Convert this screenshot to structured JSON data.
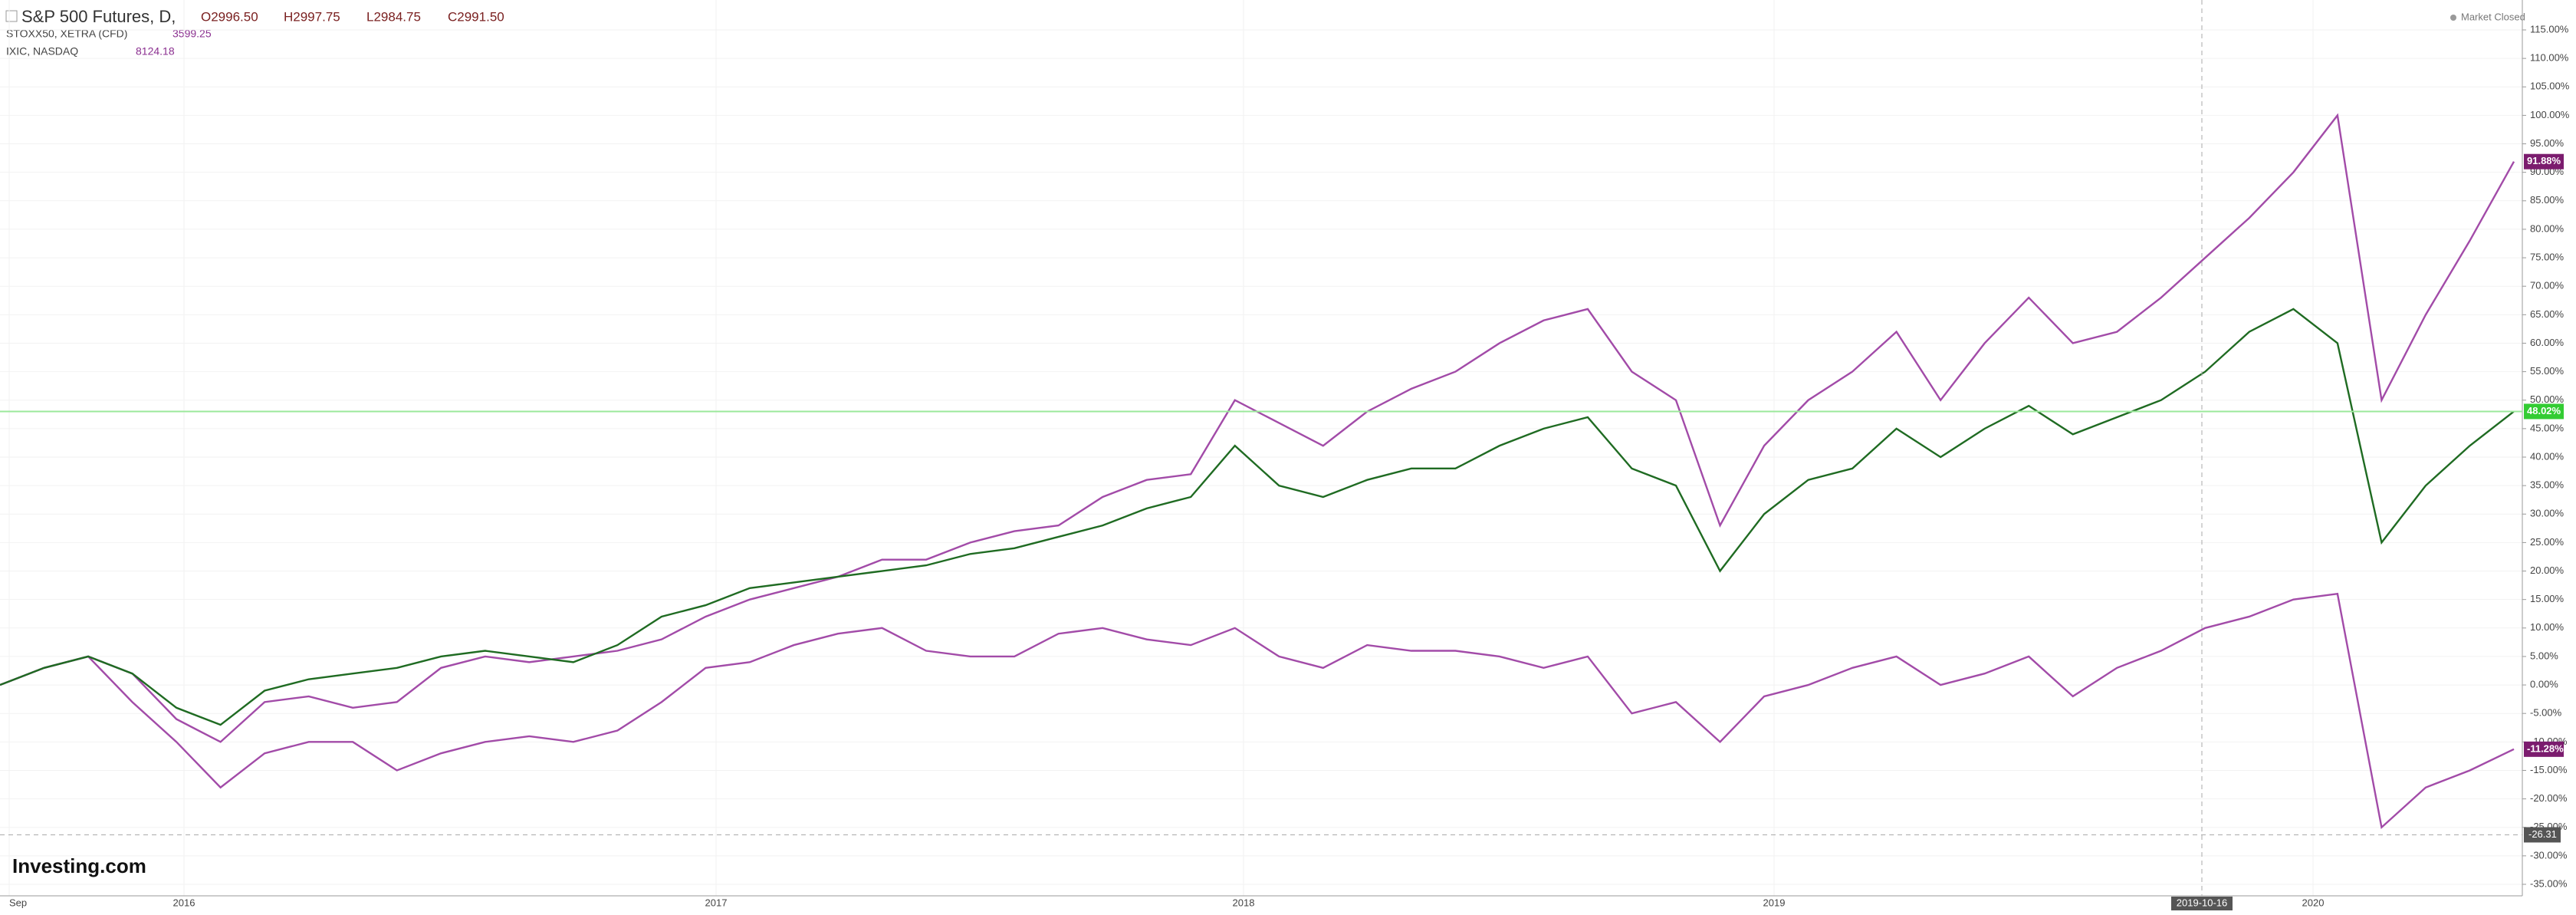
{
  "chart_data": {
    "type": "line",
    "header": {
      "symbol": "S&P 500 Futures, D,",
      "open": "O2996.50",
      "high": "H2997.75",
      "low": "L2984.75",
      "close": "C2991.50",
      "status": "Market Closed"
    },
    "compare": [
      {
        "name": "STOXX50, XETRA (CFD)",
        "last": "3599.25"
      },
      {
        "name": "IXIC, NASDAQ",
        "last": "8124.18"
      }
    ],
    "logo": "Investing.com",
    "x_labels": [
      "Sep",
      "2016",
      "2017",
      "2018",
      "2019",
      "2020"
    ],
    "crosshair": {
      "date": "2019-10-16",
      "value": -26.31
    },
    "series": [
      {
        "name": "IXIC",
        "color": "#a24ba8",
        "last_label": "91.88%",
        "badge_color": "#7b1c6e",
        "values": [
          0,
          3,
          5,
          2,
          -6,
          -10,
          -3,
          -2,
          -4,
          -3,
          3,
          5,
          4,
          5,
          6,
          8,
          12,
          15,
          17,
          19,
          22,
          22,
          25,
          27,
          28,
          33,
          36,
          37,
          50,
          46,
          42,
          48,
          52,
          55,
          60,
          64,
          66,
          55,
          50,
          28,
          42,
          50,
          55,
          62,
          50,
          60,
          68,
          60,
          62,
          68,
          75,
          82,
          90,
          100,
          50,
          65,
          78,
          91.88
        ]
      },
      {
        "name": "STOXX50",
        "color": "#a24ba8",
        "last_label": "-11.28%",
        "badge_color": "#7b1c6e",
        "values": [
          0,
          3,
          5,
          -3,
          -10,
          -18,
          -12,
          -10,
          -10,
          -15,
          -12,
          -10,
          -9,
          -10,
          -8,
          -3,
          3,
          4,
          7,
          9,
          10,
          6,
          5,
          5,
          9,
          10,
          8,
          7,
          10,
          5,
          3,
          7,
          6,
          6,
          5,
          3,
          5,
          -5,
          -3,
          -10,
          -2,
          0,
          3,
          5,
          0,
          2,
          5,
          -2,
          3,
          6,
          10,
          12,
          15,
          16,
          -25,
          -18,
          -15,
          -11.28
        ]
      },
      {
        "name": "S&P 500 Futures",
        "color": "#1f6b22",
        "last_label": "48.02%",
        "badge_color": "#33cc33",
        "price_line": "#9be89b",
        "values": [
          0,
          3,
          5,
          2,
          -4,
          -7,
          -1,
          1,
          2,
          3,
          5,
          6,
          5,
          4,
          7,
          12,
          14,
          17,
          18,
          19,
          20,
          21,
          23,
          24,
          26,
          28,
          31,
          33,
          42,
          35,
          33,
          36,
          38,
          38,
          42,
          45,
          47,
          38,
          35,
          20,
          30,
          36,
          38,
          45,
          40,
          45,
          49,
          44,
          47,
          50,
          55,
          62,
          66,
          60,
          25,
          35,
          42,
          48.02
        ]
      }
    ],
    "ylim": [
      -35,
      115
    ],
    "yticks": [
      {
        "value": 115,
        "label": "115.00%"
      },
      {
        "value": 110,
        "label": "110.00%"
      },
      {
        "value": 105,
        "label": "105.00%"
      },
      {
        "value": 100,
        "label": "100.00%"
      },
      {
        "value": 95,
        "label": "95.00%"
      },
      {
        "value": 90,
        "label": "90.00%"
      },
      {
        "value": 85,
        "label": "85.00%"
      },
      {
        "value": 80,
        "label": "80.00%"
      },
      {
        "value": 75,
        "label": "75.00%"
      },
      {
        "value": 70,
        "label": "70.00%"
      },
      {
        "value": 65,
        "label": "65.00%"
      },
      {
        "value": 60,
        "label": "60.00%"
      },
      {
        "value": 55,
        "label": "55.00%"
      },
      {
        "value": 50,
        "label": "50.00%"
      },
      {
        "value": 45,
        "label": "45.00%"
      },
      {
        "value": 40,
        "label": "40.00%"
      },
      {
        "value": 35,
        "label": "35.00%"
      },
      {
        "value": 30,
        "label": "30.00%"
      },
      {
        "value": 25,
        "label": "25.00%"
      },
      {
        "value": 20,
        "label": "20.00%"
      },
      {
        "value": 15,
        "label": "15.00%"
      },
      {
        "value": 10,
        "label": "10.00%"
      },
      {
        "value": 5,
        "label": "5.00%"
      },
      {
        "value": 0,
        "label": "0.00%"
      },
      {
        "value": -5,
        "label": "-5.00%"
      },
      {
        "value": -10,
        "label": "-10.00%"
      },
      {
        "value": -15,
        "label": "-15.00%"
      },
      {
        "value": -20,
        "label": "-20.00%"
      },
      {
        "value": -25,
        "label": "-25.00%"
      },
      {
        "value": -30,
        "label": "-30.00%"
      },
      {
        "value": -35,
        "label": "-35.00%"
      }
    ],
    "grid": true
  }
}
